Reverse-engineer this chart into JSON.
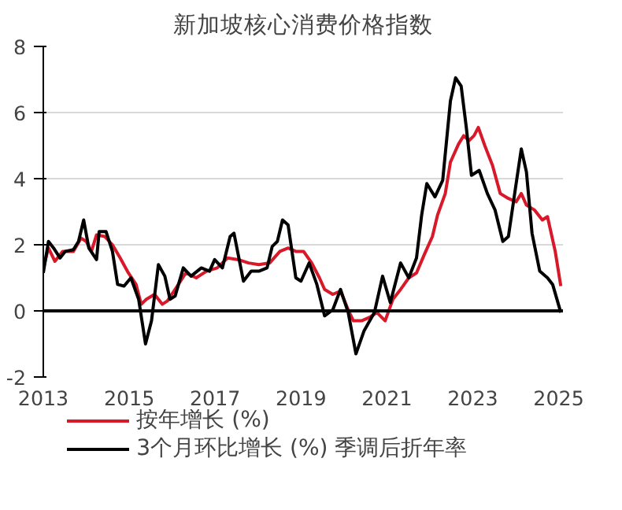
{
  "chart_data": {
    "type": "line",
    "title": "新加坡核心消费价格指数",
    "xlim": [
      2013,
      2025.1
    ],
    "xticks": [
      2013,
      2015,
      2017,
      2019,
      2021,
      2023,
      2025
    ],
    "ylim": [
      -2,
      8
    ],
    "yticks": [
      -2,
      0,
      2,
      4,
      6,
      8
    ],
    "grid": "y",
    "legend": "bottom",
    "line_style": "solid",
    "ref_lines": [
      {
        "axis": "y",
        "value": 0,
        "color": "#000000"
      }
    ],
    "series": [
      {
        "name": "按年增长 (%)",
        "color": "#d7192a",
        "x": [
          2013.0,
          2013.12,
          2013.27,
          2013.45,
          2013.7,
          2013.88,
          2014.0,
          2014.12,
          2014.24,
          2014.43,
          2014.61,
          2014.79,
          2014.98,
          2015.16,
          2015.28,
          2015.4,
          2015.59,
          2015.77,
          2015.89,
          2016.07,
          2016.32,
          2016.56,
          2016.8,
          2017.05,
          2017.29,
          2017.54,
          2017.78,
          2018.02,
          2018.27,
          2018.51,
          2018.7,
          2018.88,
          2019.06,
          2019.25,
          2019.43,
          2019.55,
          2019.74,
          2019.92,
          2020.1,
          2020.22,
          2020.41,
          2020.59,
          2020.77,
          2020.96,
          2021.14,
          2021.32,
          2021.51,
          2021.69,
          2021.87,
          2022.06,
          2022.18,
          2022.36,
          2022.48,
          2022.67,
          2022.79,
          2022.91,
          2023.03,
          2023.13,
          2023.28,
          2023.46,
          2023.64,
          2023.83,
          2024.01,
          2024.13,
          2024.25,
          2024.44,
          2024.62,
          2024.74,
          2024.92,
          2025.05
        ],
        "values": [
          1.3,
          1.9,
          1.5,
          1.8,
          1.8,
          2.2,
          2.1,
          1.8,
          2.3,
          2.25,
          2.0,
          1.6,
          1.15,
          0.8,
          0.2,
          0.35,
          0.5,
          0.2,
          0.3,
          0.65,
          1.15,
          1.0,
          1.2,
          1.3,
          1.6,
          1.55,
          1.45,
          1.4,
          1.45,
          1.8,
          1.9,
          1.8,
          1.8,
          1.45,
          1.0,
          0.65,
          0.5,
          0.6,
          0.03,
          -0.3,
          -0.3,
          -0.2,
          -0.05,
          -0.3,
          0.35,
          0.65,
          1.0,
          1.15,
          1.7,
          2.25,
          2.9,
          3.55,
          4.5,
          5.05,
          5.3,
          5.15,
          5.3,
          5.55,
          5.0,
          4.4,
          3.55,
          3.4,
          3.3,
          3.55,
          3.2,
          3.05,
          2.75,
          2.85,
          1.8,
          0.75
        ]
      },
      {
        "name": "3个月环比增长 (%) 季调后折年率",
        "color": "#000000",
        "x": [
          2013.0,
          2013.12,
          2013.24,
          2013.39,
          2013.51,
          2013.7,
          2013.82,
          2013.94,
          2014.06,
          2014.24,
          2014.3,
          2014.46,
          2014.61,
          2014.73,
          2014.88,
          2015.04,
          2015.22,
          2015.38,
          2015.52,
          2015.68,
          2015.83,
          2015.95,
          2016.07,
          2016.26,
          2016.44,
          2016.68,
          2016.87,
          2016.99,
          2017.17,
          2017.35,
          2017.44,
          2017.66,
          2017.84,
          2018.02,
          2018.21,
          2018.33,
          2018.45,
          2018.57,
          2018.7,
          2018.88,
          2019.0,
          2019.19,
          2019.37,
          2019.55,
          2019.74,
          2019.92,
          2020.1,
          2020.28,
          2020.47,
          2020.71,
          2020.9,
          2021.08,
          2021.32,
          2021.51,
          2021.69,
          2021.81,
          2021.93,
          2022.12,
          2022.3,
          2022.48,
          2022.6,
          2022.73,
          2022.85,
          2022.97,
          2023.15,
          2023.34,
          2023.52,
          2023.7,
          2023.83,
          2024.01,
          2024.13,
          2024.25,
          2024.38,
          2024.56,
          2024.74,
          2024.86,
          2025.05
        ],
        "values": [
          1.15,
          2.1,
          1.9,
          1.6,
          1.8,
          1.85,
          2.1,
          2.75,
          1.9,
          1.55,
          2.4,
          2.4,
          1.8,
          0.8,
          0.75,
          1.0,
          0.35,
          -1.0,
          -0.3,
          1.4,
          1.05,
          0.35,
          0.45,
          1.3,
          1.05,
          1.3,
          1.2,
          1.55,
          1.3,
          2.25,
          2.35,
          0.9,
          1.2,
          1.2,
          1.3,
          1.95,
          2.1,
          2.75,
          2.6,
          1.0,
          0.9,
          1.45,
          0.8,
          -0.15,
          0.03,
          0.65,
          -0.05,
          -1.3,
          -0.6,
          -0.05,
          1.05,
          0.25,
          1.45,
          1.0,
          1.6,
          2.9,
          3.85,
          3.45,
          3.95,
          6.35,
          7.05,
          6.8,
          5.55,
          4.1,
          4.25,
          3.55,
          3.05,
          2.1,
          2.25,
          3.85,
          4.9,
          4.2,
          2.35,
          1.2,
          1.0,
          0.8,
          -0.05
        ]
      }
    ]
  }
}
